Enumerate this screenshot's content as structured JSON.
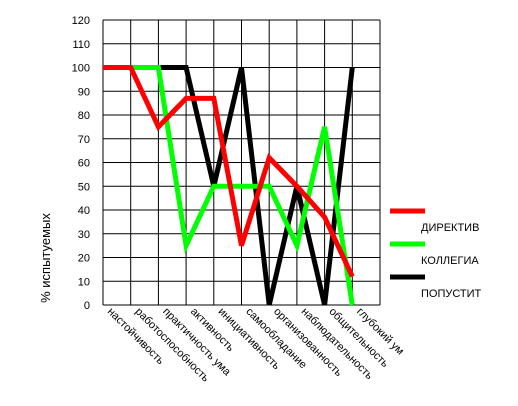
{
  "chart_data": {
    "type": "line",
    "title": "",
    "xlabel": "",
    "ylabel": "% испытуемых",
    "ylim": [
      0,
      120
    ],
    "y_tick_step": 10,
    "grid": true,
    "legend_position": "right",
    "categories": [
      "настойчивость",
      "работоспособность",
      "практичность ума",
      "активность",
      "инициативность",
      "самообладание",
      "организованность",
      "наблюдательность",
      "общительность",
      "глубокий ум"
    ],
    "series": [
      {
        "name": "ДИРЕКТИВ",
        "color": "#ff0000",
        "values": [
          100,
          100,
          75,
          87,
          87,
          25,
          62,
          50,
          37,
          12
        ]
      },
      {
        "name": "КОЛЛЕГИА",
        "color": "#00ff00",
        "values": [
          100,
          100,
          100,
          25,
          50,
          50,
          50,
          25,
          75,
          0
        ]
      },
      {
        "name": "ПОПУСТИТ",
        "color": "#000000",
        "values": [
          100,
          100,
          100,
          100,
          50,
          100,
          0,
          50,
          0,
          100
        ]
      }
    ]
  }
}
